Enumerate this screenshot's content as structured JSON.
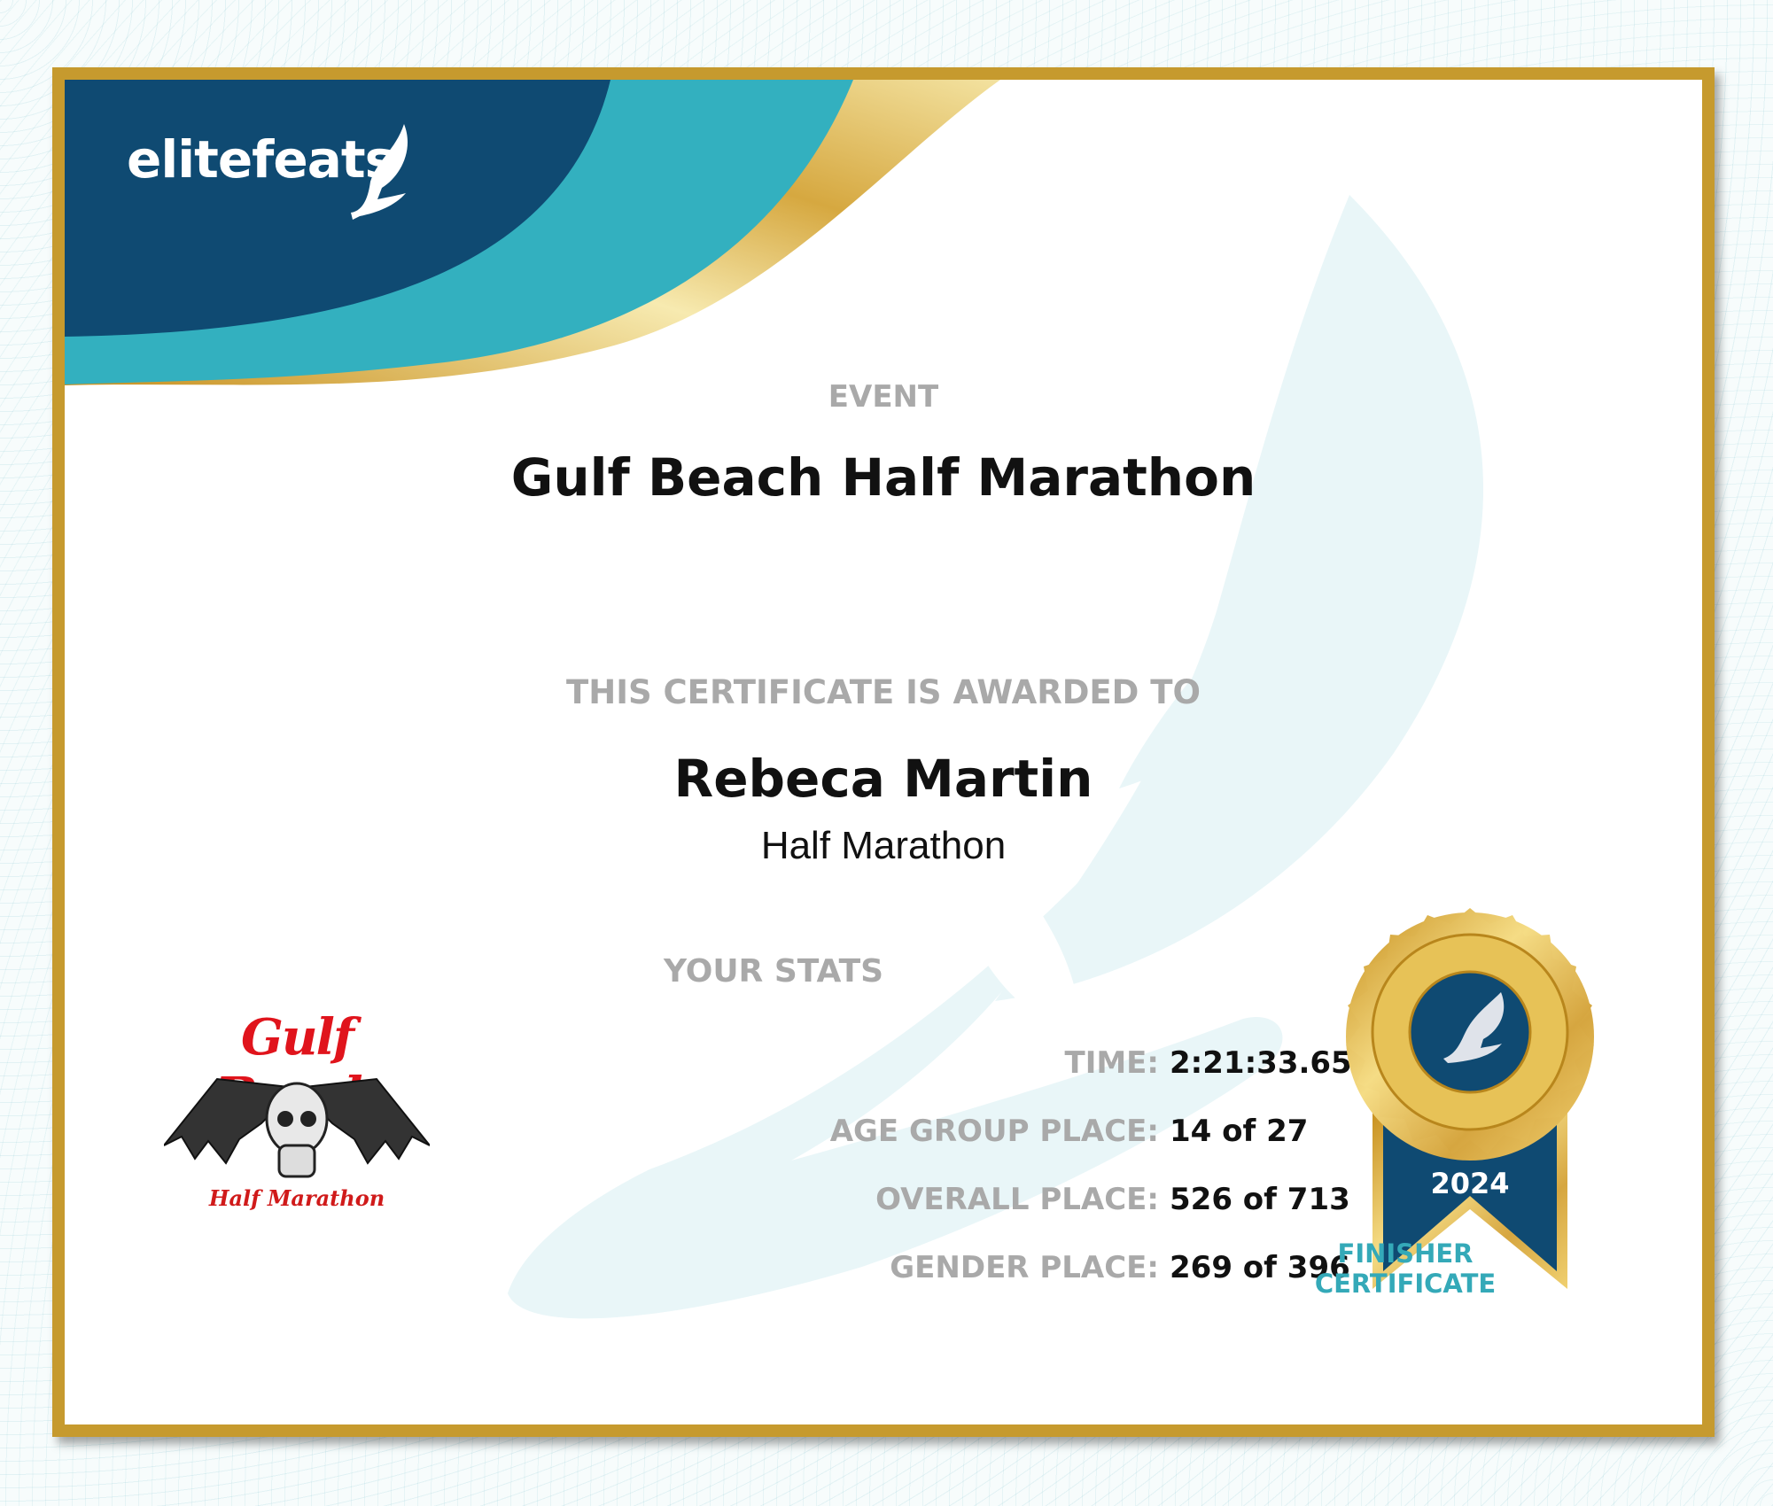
{
  "brand": {
    "name": "elitefeats",
    "icon": "winged-foot-icon"
  },
  "colors": {
    "navy": "#0f4a72",
    "teal": "#33b0bf",
    "gold": "#c69a2e",
    "label_gray": "#a9a9a9"
  },
  "event": {
    "label": "EVENT",
    "title": "Gulf Beach Half Marathon"
  },
  "award": {
    "label": "THIS CERTIFICATE IS AWARDED TO",
    "name": "Rebeca Martin",
    "race": "Half Marathon"
  },
  "stats": {
    "title": "YOUR STATS",
    "rows": [
      {
        "label": "TIME:",
        "value": "2:21:33.65"
      },
      {
        "label": "AGE GROUP PLACE:",
        "value": "14 of 27"
      },
      {
        "label": "OVERALL PLACE:",
        "value": "526 of 713"
      },
      {
        "label": "GENDER PLACE:",
        "value": "269 of 396"
      }
    ]
  },
  "event_logo": {
    "line1": "Gulf Beach",
    "line2": "Half Marathon",
    "icon": "winged-skull-icon"
  },
  "badge": {
    "year": "2024",
    "line1": "FINISHER",
    "line2": "CERTIFICATE"
  }
}
